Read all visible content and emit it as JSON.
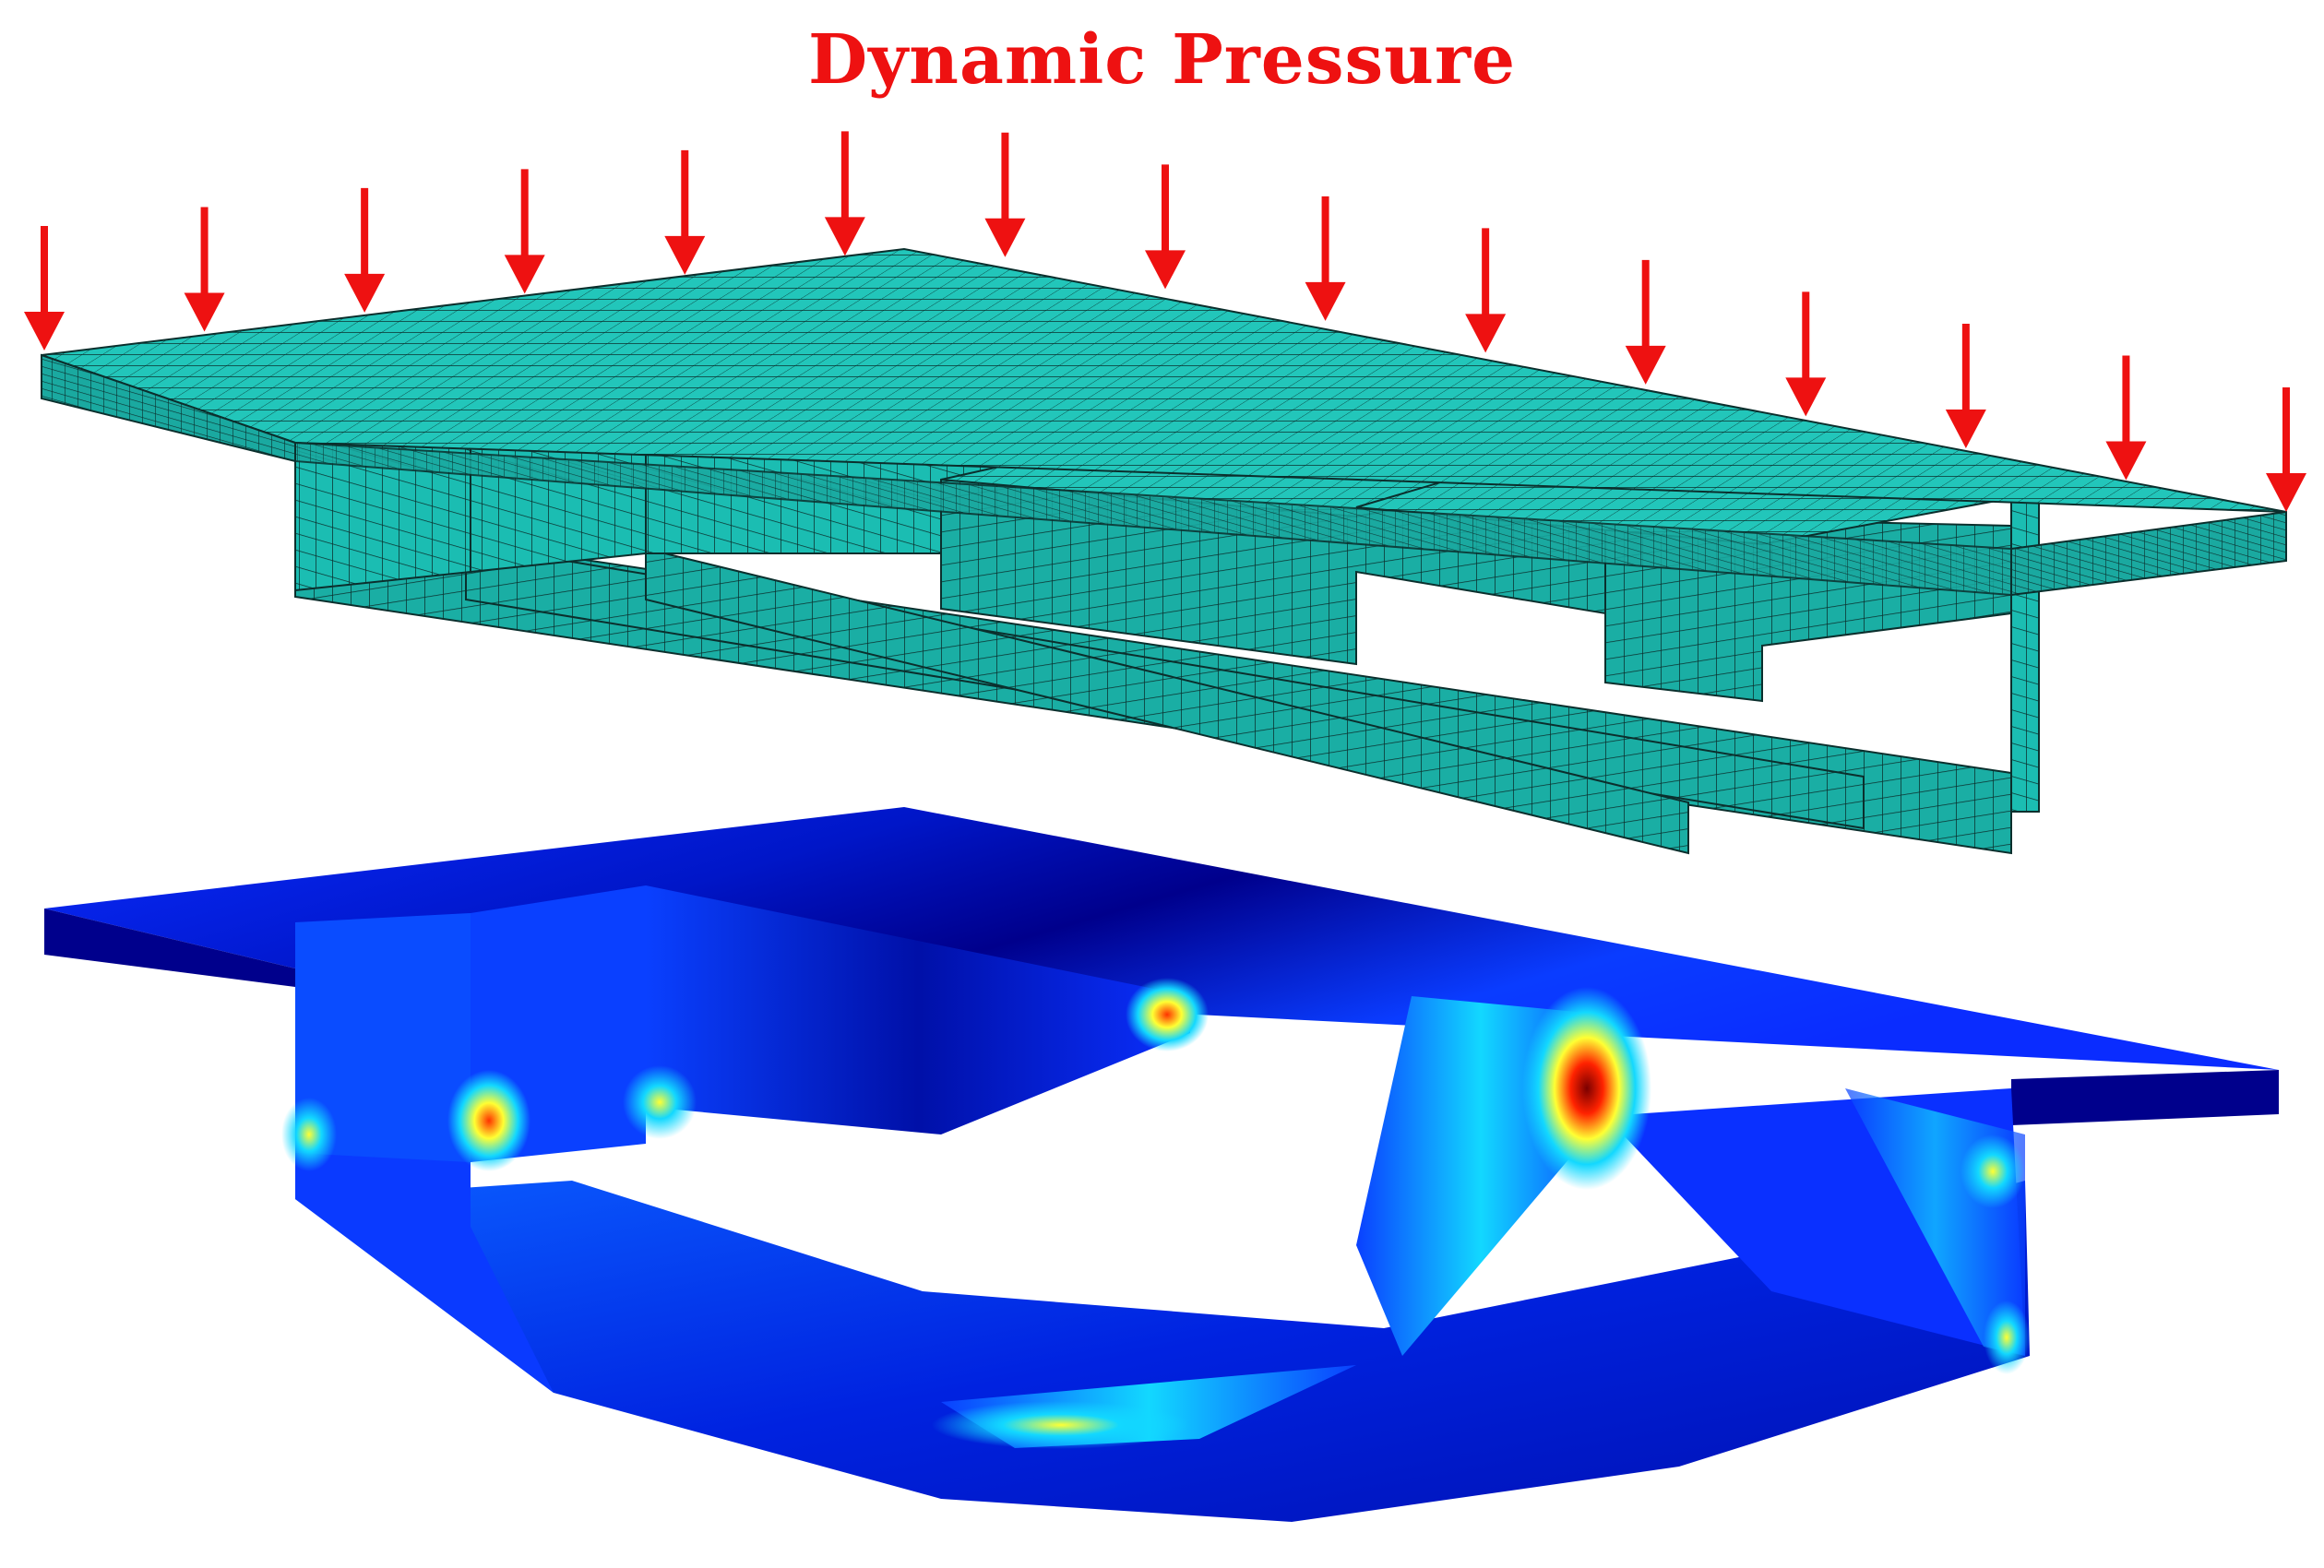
{
  "title": "Dynamic Pressure",
  "colors": {
    "title": "#ee1111",
    "arrow": "#ee1111",
    "mesh_fill": "#1bbdb2",
    "mesh_fill_top": "#22c6ba",
    "mesh_fill_side": "#17a89e",
    "mesh_line": "#0b2f2d",
    "contour_low": "#00008c",
    "contour_mid_low": "#0a2cff",
    "contour_mid": "#12d8ff",
    "contour_high": "#ffff33",
    "contour_very_high": "#ff2200",
    "contour_max": "#7a0000"
  },
  "arrow_count": 15
}
